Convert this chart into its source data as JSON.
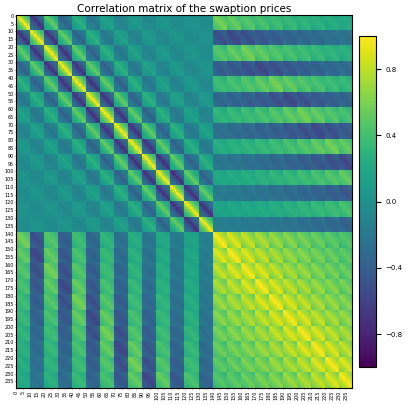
{
  "title": "Correlation matrix of the swaption prices",
  "colormap": "viridis",
  "vmin": -1.0,
  "vmax": 1.0,
  "n_total": 240,
  "n_block1": 140,
  "n_block2": 100,
  "n_tenors1": 14,
  "n_strikes1": 10,
  "n_tenors2": 10,
  "n_strikes2": 10,
  "colorbar_ticks": [
    -0.8,
    -0.4,
    0.0,
    0.4,
    0.8
  ],
  "tick_step": 5,
  "figsize": [
    4.07,
    4.04
  ],
  "dpi": 100,
  "title_fontsize": 7.5,
  "tick_fontsize": 3.5
}
